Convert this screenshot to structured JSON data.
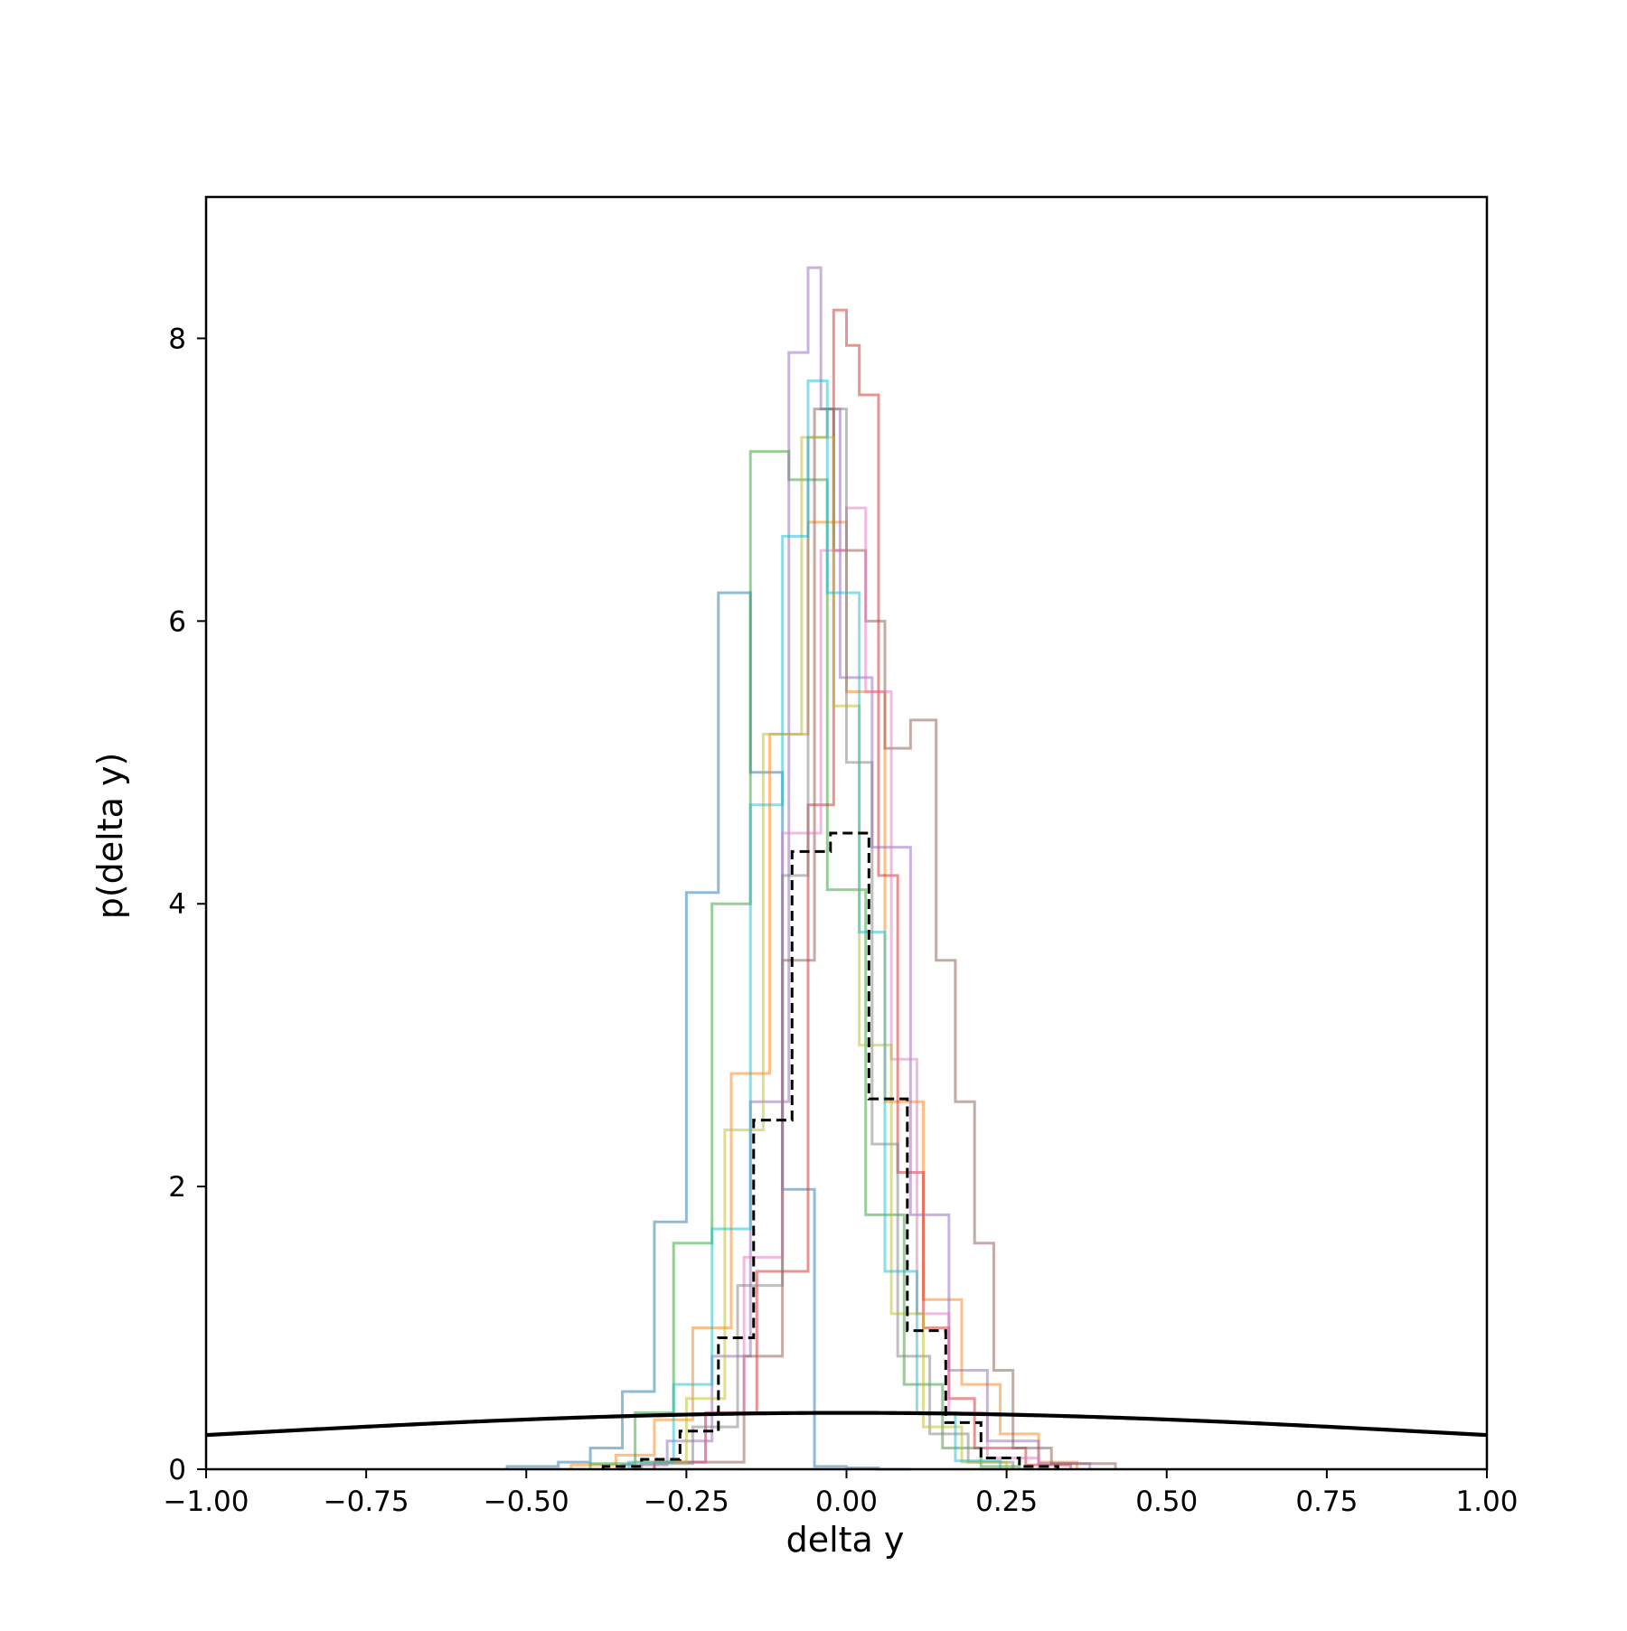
{
  "chart_data": {
    "type": "histogram",
    "xlabel": "delta y",
    "ylabel": "p(delta y)",
    "xlim": [
      -1.0,
      1.0
    ],
    "ylim": [
      0,
      9.0
    ],
    "x_ticks": [
      -1.0,
      -0.75,
      -0.5,
      -0.25,
      0.0,
      0.25,
      0.5,
      0.75,
      1.0
    ],
    "x_tick_labels": [
      "−1.00",
      "−0.75",
      "−0.50",
      "−0.25",
      "0.00",
      "0.25",
      "0.50",
      "0.75",
      "1.00"
    ],
    "y_ticks": [
      0,
      2,
      4,
      6,
      8
    ],
    "y_tick_labels": [
      "0",
      "2",
      "4",
      "6",
      "8"
    ],
    "grid": false,
    "legend": "none",
    "step_series": [
      {
        "color": "#1f77b4",
        "opacity": 0.5,
        "edges": [
          -0.53,
          -0.45,
          -0.4,
          -0.35,
          -0.3,
          -0.25,
          -0.2,
          -0.15,
          -0.1,
          -0.05,
          0.0,
          0.05,
          0.1
        ],
        "values": [
          0.02,
          0.05,
          0.15,
          0.55,
          1.75,
          4.08,
          6.2,
          4.93,
          1.98,
          0.02,
          0.01,
          0.0
        ]
      },
      {
        "color": "#ff7f0e",
        "opacity": 0.5,
        "edges": [
          -0.43,
          -0.36,
          -0.3,
          -0.24,
          -0.18,
          -0.12,
          -0.06,
          0.0,
          0.06,
          0.12,
          0.18,
          0.24,
          0.3,
          0.36
        ],
        "values": [
          0.03,
          0.1,
          0.35,
          1.0,
          2.8,
          5.2,
          6.7,
          5.5,
          2.6,
          1.2,
          0.6,
          0.25,
          0.05
        ]
      },
      {
        "color": "#2ca02c",
        "opacity": 0.5,
        "edges": [
          -0.4,
          -0.33,
          -0.27,
          -0.21,
          -0.15,
          -0.09,
          -0.03,
          0.03,
          0.09,
          0.15,
          0.21,
          0.27
        ],
        "values": [
          0.04,
          0.4,
          1.6,
          4.0,
          7.2,
          7.0,
          4.1,
          1.8,
          0.6,
          0.15,
          0.02
        ]
      },
      {
        "color": "#d62728",
        "opacity": 0.5,
        "edges": [
          -0.3,
          -0.22,
          -0.14,
          -0.06,
          -0.02,
          0.0,
          0.02,
          0.05,
          0.08,
          0.12,
          0.16,
          0.2,
          0.28,
          0.35
        ],
        "values": [
          0.05,
          0.4,
          1.4,
          4.7,
          8.2,
          7.95,
          7.6,
          4.2,
          2.1,
          1.0,
          0.5,
          0.15,
          0.03
        ]
      },
      {
        "color": "#9467bd",
        "opacity": 0.5,
        "edges": [
          -0.35,
          -0.28,
          -0.21,
          -0.15,
          -0.09,
          -0.06,
          -0.04,
          -0.01,
          0.04,
          0.1,
          0.16,
          0.22,
          0.3,
          0.38
        ],
        "values": [
          0.03,
          0.2,
          0.8,
          2.6,
          7.9,
          8.5,
          7.5,
          5.6,
          4.4,
          1.8,
          0.7,
          0.2,
          0.04
        ]
      },
      {
        "color": "#8c564b",
        "opacity": 0.5,
        "edges": [
          -0.3,
          -0.16,
          -0.1,
          -0.05,
          -0.02,
          0.03,
          0.06,
          0.1,
          0.14,
          0.17,
          0.2,
          0.23,
          0.26,
          0.32,
          0.42
        ],
        "values": [
          0.05,
          0.8,
          3.6,
          7.5,
          6.5,
          6.0,
          5.1,
          5.3,
          3.6,
          2.6,
          1.6,
          0.7,
          0.15,
          0.04
        ]
      },
      {
        "color": "#e377c2",
        "opacity": 0.5,
        "edges": [
          -0.3,
          -0.22,
          -0.16,
          -0.1,
          -0.04,
          0.0,
          0.03,
          0.07,
          0.11,
          0.16,
          0.22,
          0.3
        ],
        "values": [
          0.05,
          0.4,
          1.5,
          4.5,
          6.5,
          6.8,
          5.5,
          2.9,
          1.1,
          0.4,
          0.08
        ]
      },
      {
        "color": "#7f7f7f",
        "opacity": 0.5,
        "edges": [
          -0.32,
          -0.24,
          -0.17,
          -0.1,
          -0.06,
          -0.03,
          0.0,
          0.04,
          0.08,
          0.13,
          0.19,
          0.26
        ],
        "values": [
          0.04,
          0.3,
          1.3,
          4.2,
          7.3,
          7.5,
          5.0,
          2.3,
          0.8,
          0.25,
          0.05
        ]
      },
      {
        "color": "#bcbd22",
        "opacity": 0.5,
        "edges": [
          -0.33,
          -0.25,
          -0.19,
          -0.13,
          -0.07,
          -0.02,
          0.02,
          0.07,
          0.12,
          0.18,
          0.25
        ],
        "values": [
          0.05,
          0.5,
          2.4,
          5.2,
          7.3,
          5.4,
          3.0,
          1.1,
          0.3,
          0.05
        ]
      },
      {
        "color": "#17becf",
        "opacity": 0.5,
        "edges": [
          -0.34,
          -0.27,
          -0.21,
          -0.15,
          -0.1,
          -0.06,
          -0.03,
          0.02,
          0.06,
          0.11,
          0.17,
          0.24
        ],
        "values": [
          0.05,
          0.6,
          1.7,
          4.7,
          6.6,
          7.7,
          6.2,
          3.8,
          1.4,
          0.4,
          0.06
        ]
      }
    ],
    "dashed_series": {
      "color": "#000000",
      "edges": [
        -0.38,
        -0.32,
        -0.26,
        -0.2,
        -0.145,
        -0.085,
        -0.025,
        0.035,
        0.095,
        0.155,
        0.21,
        0.27,
        0.33
      ],
      "values": [
        0.02,
        0.07,
        0.27,
        0.93,
        2.47,
        4.37,
        4.5,
        2.62,
        0.98,
        0.33,
        0.08,
        0.02
      ]
    },
    "curve": {
      "type": "normal_pdf",
      "mean": 0.0,
      "std": 1.0,
      "color": "#000000"
    }
  }
}
